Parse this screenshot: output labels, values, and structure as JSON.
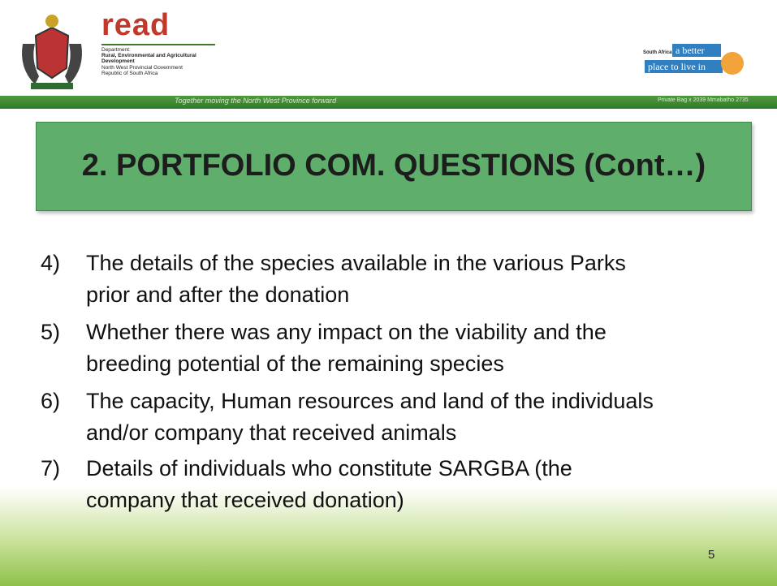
{
  "header": {
    "logo": "read",
    "department_label": "Department:",
    "department_name": [
      "Rural, Environmental and Agricultural",
      "Development"
    ],
    "government": "North West Provincial Government",
    "country": "Republic of South Africa",
    "slogan": [
      "South Africa",
      "a better",
      "place to live in"
    ],
    "tagline": "Together moving the North West Province forward",
    "address": "Private Bag x 2039 Mmabatho 2735"
  },
  "title": "2. PORTFOLIO COM. QUESTIONS  (Cont…)",
  "items": [
    {
      "number": "4)",
      "lines": [
        "The details of the species available in the various Parks",
        "prior and after the donation"
      ]
    },
    {
      "number": "5)",
      "lines": [
        "Whether there was any impact on the viability and the",
        "breeding potential of the remaining species"
      ]
    },
    {
      "number": "6)",
      "lines": [
        "The capacity, Human resources and land of the individuals",
        "and/or company that received animals"
      ]
    },
    {
      "number": "7)",
      "lines": [
        "Details of individuals who constitute SARGBA (the",
        "company that received donation)"
      ]
    }
  ],
  "page_number": "5"
}
